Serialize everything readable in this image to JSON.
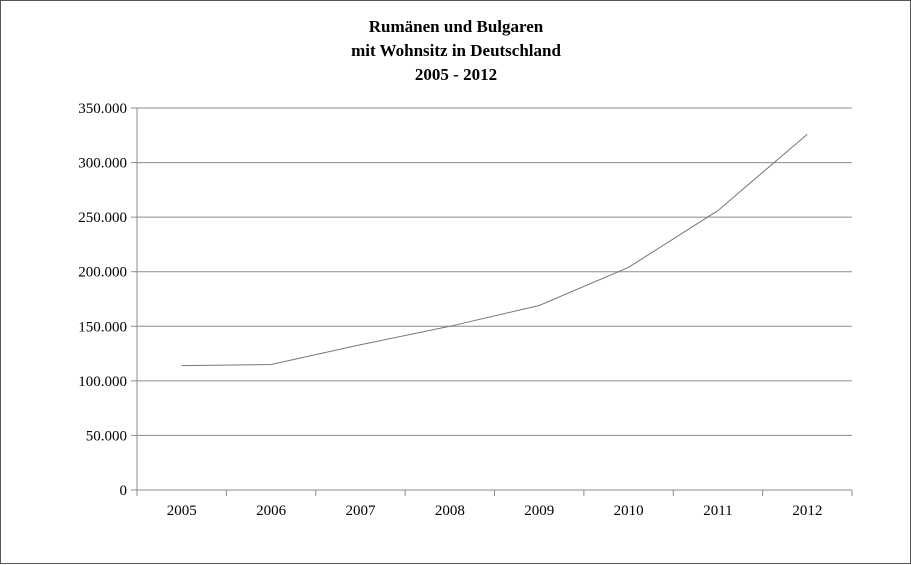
{
  "chart_data": {
    "type": "line",
    "title": [
      "Rumänen und Bulgaren",
      "mit Wohnsitz in Deutschland",
      "2005 - 2012"
    ],
    "xlabel": "",
    "ylabel": "",
    "categories": [
      "2005",
      "2006",
      "2007",
      "2008",
      "2009",
      "2010",
      "2011",
      "2012"
    ],
    "series": [
      {
        "values": [
          114000,
          115000,
          133000,
          150000,
          169000,
          204000,
          256000,
          326000
        ]
      }
    ],
    "ylim": [
      0,
      350000
    ],
    "yticks": [
      0,
      50000,
      100000,
      150000,
      200000,
      250000,
      300000,
      350000
    ],
    "ytick_labels": [
      "0",
      "50.000",
      "100.000",
      "150.000",
      "200.000",
      "250.000",
      "300.000",
      "350.000"
    ],
    "grid": "horizontal",
    "legend": "none",
    "colors": {
      "line": "#777777",
      "grid": "#8c8c8c",
      "axis": "#8c8c8c"
    }
  }
}
